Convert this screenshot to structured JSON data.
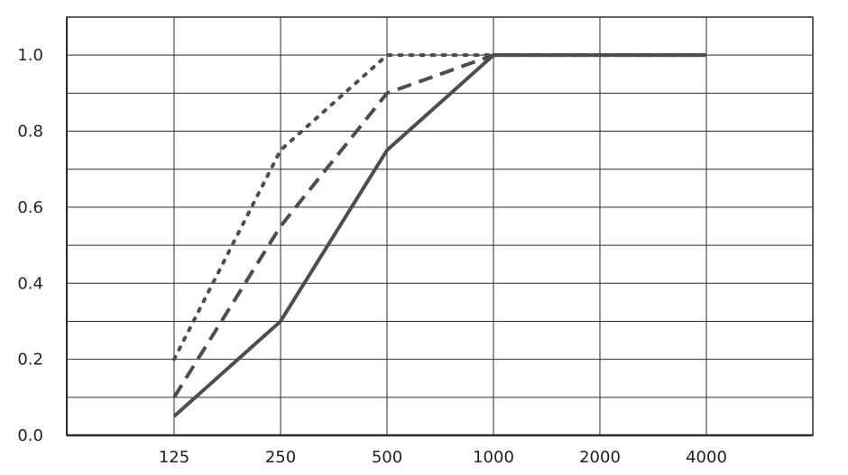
{
  "chart_data": {
    "type": "line",
    "title": "",
    "xlabel": "",
    "ylabel": "",
    "categories": [
      "125",
      "250",
      "500",
      "1000",
      "2000",
      "4000"
    ],
    "ylim": [
      0,
      1.1
    ],
    "y_ticks": [
      "0.0",
      "0.2",
      "0.4",
      "0.6",
      "0.8",
      "1.0"
    ],
    "grid": true,
    "legend": "none",
    "series": [
      {
        "style": "solid",
        "color": "#4d4d4d",
        "values": [
          0.05,
          0.3,
          0.75,
          1.0,
          1.0,
          1.0
        ]
      },
      {
        "style": "dashed",
        "color": "#4d4d4d",
        "values": [
          0.1,
          0.55,
          0.9,
          1.0,
          1.0,
          1.0
        ]
      },
      {
        "style": "dotted",
        "color": "#4d4d4d",
        "values": [
          0.2,
          0.75,
          1.0,
          1.0,
          1.0,
          1.0
        ]
      }
    ]
  }
}
